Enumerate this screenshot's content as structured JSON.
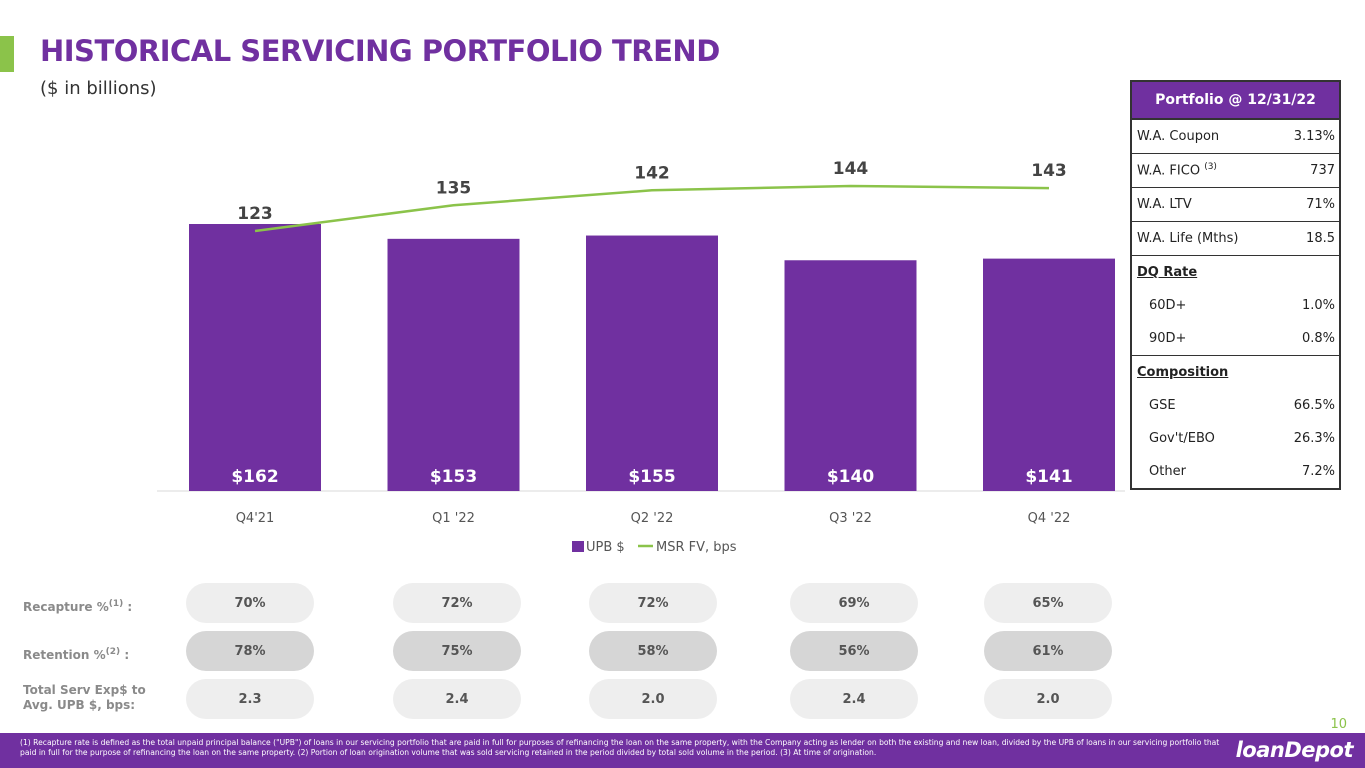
{
  "header": {
    "title": "HISTORICAL SERVICING PORTFOLIO TREND",
    "subtitle": "($ in billions)"
  },
  "colors": {
    "purple": "#7030a0",
    "green": "#8bc34a"
  },
  "chart_data": {
    "type": "bar",
    "title": "",
    "categories": [
      "Q4'21",
      "Q1 '22",
      "Q2 '22",
      "Q3 '22",
      "Q4 '22"
    ],
    "series": [
      {
        "name": "UPB $",
        "kind": "bar",
        "values": [
          162,
          153,
          155,
          140,
          141
        ],
        "labels": [
          "$162",
          "$153",
          "$155",
          "$140",
          "$141"
        ]
      },
      {
        "name": "MSR FV, bps",
        "kind": "line",
        "values": [
          123,
          135,
          142,
          144,
          143
        ],
        "labels": [
          "123",
          "135",
          "142",
          "144",
          "143"
        ]
      }
    ],
    "legend": [
      "UPB $",
      "MSR FV, bps"
    ],
    "legend_position": "bottom",
    "ylim": [
      0,
      170
    ],
    "line_ylim": [
      0,
      160
    ],
    "grid": false
  },
  "metrics": [
    {
      "label": "Recapture %",
      "sup": "(1)",
      "suffix": " :",
      "style": "light",
      "values": [
        "70%",
        "72%",
        "72%",
        "69%",
        "65%"
      ]
    },
    {
      "label": "Retention %",
      "sup": "(2)",
      "suffix": " :",
      "style": "dark",
      "values": [
        "78%",
        "75%",
        "58%",
        "56%",
        "61%"
      ]
    },
    {
      "label": "Total Serv Exp$ to\nAvg. UPB $, bps:",
      "sup": "",
      "suffix": "",
      "style": "light",
      "values": [
        "2.3",
        "2.4",
        "2.0",
        "2.4",
        "2.0"
      ]
    }
  ],
  "portfolio": {
    "header": "Portfolio @ 12/31/22",
    "rows": [
      {
        "k": "W.A. Coupon",
        "v": "3.13%"
      },
      {
        "k": "W.A. FICO",
        "sup": "(3)",
        "v": "737"
      },
      {
        "k": "W.A. LTV",
        "v": "71%"
      },
      {
        "k": "W.A. Life (Mths)",
        "v": "18.5"
      }
    ],
    "dq_title": "DQ Rate",
    "dq_rows": [
      {
        "k": "60D+",
        "v": "1.0%"
      },
      {
        "k": "90D+",
        "v": "0.8%"
      }
    ],
    "comp_title": "Composition",
    "comp_rows": [
      {
        "k": "GSE",
        "v": "66.5%"
      },
      {
        "k": "Gov't/EBO",
        "v": "26.3%"
      },
      {
        "k": "Other",
        "v": "7.2%"
      }
    ]
  },
  "footnote": "(1) Recapture rate is defined as the total unpaid principal balance (\"UPB\") of loans in our servicing portfolio that are paid in full for purposes of refinancing the loan on the same property, with the Company acting as lender on both the existing and new loan, divided by the UPB of loans in our servicing portfolio that paid in full for the purpose of refinancing the loan on the same property. (2) Portion of loan origination volume that was sold servicing retained in the period divided by total sold volume in the period. (3) At time of origination.",
  "page_number": "10",
  "logo": {
    "text": "loanDepot"
  }
}
